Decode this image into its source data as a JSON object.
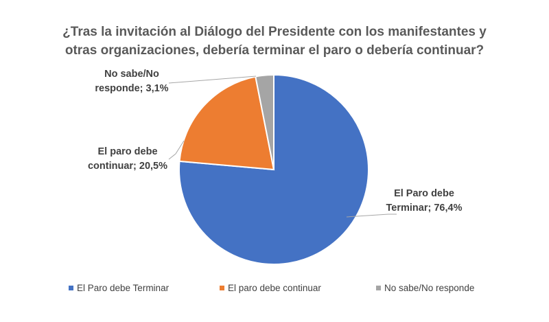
{
  "chart_data": {
    "type": "pie",
    "title_lines": [
      "¿Tras la invitación al Diálogo del Presidente con los manifestantes y",
      "otras organizaciones, debería terminar el paro o debería continuar?"
    ],
    "categories": [
      "El Paro debe Terminar",
      "El paro debe continuar",
      "No sabe/No responde"
    ],
    "values": [
      76.4,
      20.5,
      3.1
    ],
    "colors": [
      "#4472C4",
      "#ED7D31",
      "#A5A5A5"
    ],
    "data_labels": [
      [
        "El Paro debe",
        "Terminar; 76,4%"
      ],
      [
        "El paro debe",
        "continuar; 20,5%"
      ],
      [
        "No sabe/No",
        "responde; 3,1%"
      ]
    ],
    "legend": {
      "position": "bottom",
      "entries": [
        "El Paro debe Terminar",
        "El paro debe continuar",
        "No sabe/No responde"
      ]
    }
  }
}
